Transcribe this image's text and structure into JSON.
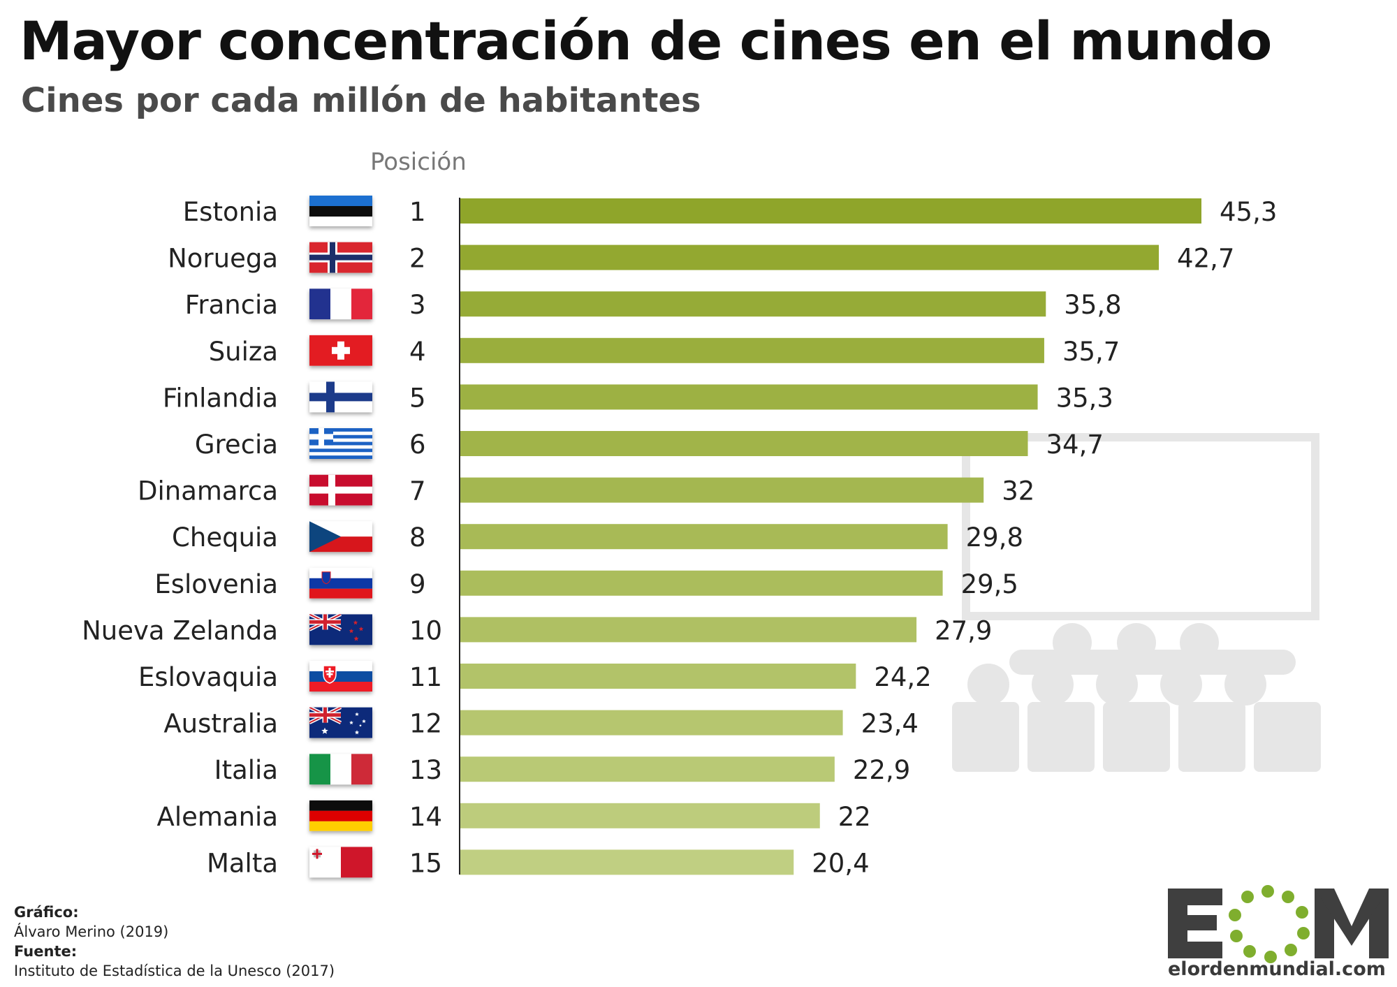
{
  "header": {
    "title": "Mayor concentración de cines en el mundo",
    "subtitle": "Cines por cada millón de habitantes",
    "position_label": "Posición"
  },
  "chart_data": {
    "type": "bar",
    "orientation": "horizontal",
    "title": "Mayor concentración de cines en el mundo",
    "subtitle": "Cines por cada millón de habitantes",
    "xlabel": "",
    "ylabel": "",
    "xlim": [
      0,
      45.3
    ],
    "grid": false,
    "legend": "none",
    "categories": [
      "Estonia",
      "Noruega",
      "Francia",
      "Suiza",
      "Finlandia",
      "Grecia",
      "Dinamarca",
      "Chequia",
      "Eslovenia",
      "Nueva Zelanda",
      "Eslovaquia",
      "Australia",
      "Italia",
      "Alemania",
      "Malta"
    ],
    "positions": [
      "1",
      "2",
      "3",
      "4",
      "5",
      "6",
      "7",
      "8",
      "9",
      "10",
      "11",
      "12",
      "13",
      "14",
      "15"
    ],
    "values": [
      45.3,
      42.7,
      35.8,
      35.7,
      35.3,
      34.7,
      32,
      29.8,
      29.5,
      27.9,
      24.2,
      23.4,
      22.9,
      22,
      20.4
    ],
    "value_labels": [
      "45,3",
      "42,7",
      "35,8",
      "35,7",
      "35,3",
      "34,7",
      "32",
      "29,8",
      "29,5",
      "27,9",
      "24,2",
      "23,4",
      "22,9",
      "22",
      "20,4"
    ],
    "flags": [
      "flag-estonia",
      "flag-norway",
      "flag-france",
      "flag-switzerland",
      "flag-finland",
      "flag-greece",
      "flag-denmark",
      "flag-czechia",
      "flag-slovenia",
      "flag-new-zealand",
      "flag-slovakia",
      "flag-australia",
      "flag-italy",
      "flag-germany",
      "flag-malta"
    ],
    "colors": {
      "bar_top": "#8fa52a",
      "bar_bottom": "#c0cf82"
    }
  },
  "credits": {
    "graphic_label": "Gráfico:",
    "graphic_value": "Álvaro Merino (2019)",
    "source_label": "Fuente:",
    "source_value": "Instituto de Estadística de la Unesco (2017)"
  },
  "logo": {
    "text": "EOM",
    "url": "elordenmundial.com",
    "colors": {
      "letters": "#3f3f3f",
      "dots": "#7fae2e"
    }
  }
}
